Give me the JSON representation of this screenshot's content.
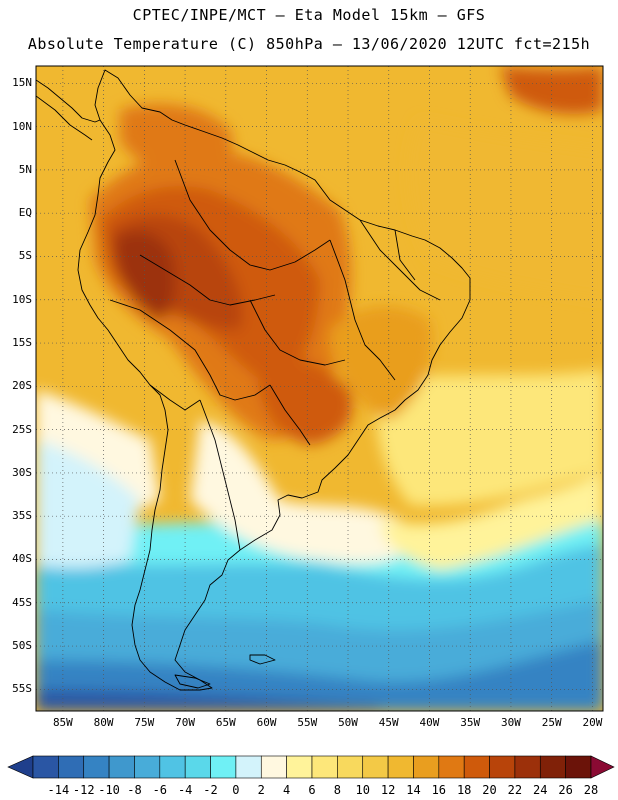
{
  "header": {
    "line1": "CPTEC/INPE/MCT –  Eta Model 15km – GFS",
    "line2": "Absolute Temperature (C) 850hPa – 13/06/2020 12UTC fct=215h"
  },
  "map": {
    "region": "South America",
    "variable": "Absolute Temperature at 850hPa",
    "units": "C",
    "lat_labels": [
      {
        "text": "15N",
        "deg": 15
      },
      {
        "text": "10N",
        "deg": 10
      },
      {
        "text": "5N",
        "deg": 5
      },
      {
        "text": "EQ",
        "deg": 0
      },
      {
        "text": "5S",
        "deg": -5
      },
      {
        "text": "10S",
        "deg": -10
      },
      {
        "text": "15S",
        "deg": -15
      },
      {
        "text": "20S",
        "deg": -20
      },
      {
        "text": "25S",
        "deg": -25
      },
      {
        "text": "30S",
        "deg": -30
      },
      {
        "text": "35S",
        "deg": -35
      },
      {
        "text": "40S",
        "deg": -40
      },
      {
        "text": "45S",
        "deg": -45
      },
      {
        "text": "50S",
        "deg": -50
      },
      {
        "text": "55S",
        "deg": -55
      }
    ],
    "lon_labels": [
      {
        "text": "85W",
        "deg": -85
      },
      {
        "text": "80W",
        "deg": -80
      },
      {
        "text": "75W",
        "deg": -75
      },
      {
        "text": "70W",
        "deg": -70
      },
      {
        "text": "65W",
        "deg": -65
      },
      {
        "text": "60W",
        "deg": -60
      },
      {
        "text": "55W",
        "deg": -55
      },
      {
        "text": "50W",
        "deg": -50
      },
      {
        "text": "45W",
        "deg": -45
      },
      {
        "text": "40W",
        "deg": -40
      },
      {
        "text": "35W",
        "deg": -35
      },
      {
        "text": "30W",
        "deg": -30
      },
      {
        "text": "25W",
        "deg": -25
      },
      {
        "text": "20W",
        "deg": -20
      }
    ]
  },
  "colorbar": {
    "labels": [
      "-14",
      "-12",
      "-10",
      "-8",
      "-6",
      "-4",
      "-2",
      "0",
      "2",
      "4",
      "6",
      "8",
      "10",
      "12",
      "14",
      "16",
      "18",
      "20",
      "22",
      "24",
      "26",
      "28"
    ],
    "colors": [
      "#1f3f8c",
      "#2a56a4",
      "#2f6db5",
      "#3583c3",
      "#3f98cd",
      "#48acd9",
      "#50c3e4",
      "#5ad8ea",
      "#6ff0f5",
      "#d3f3fb",
      "#fff8e0",
      "#fff39a",
      "#fde77a",
      "#f8d95d",
      "#f3c946",
      "#f0b830",
      "#e99e1f",
      "#e07913",
      "#cf5a0b",
      "#b8440a",
      "#9c300a",
      "#802108",
      "#6b1309",
      "#8a0a33"
    ]
  }
}
